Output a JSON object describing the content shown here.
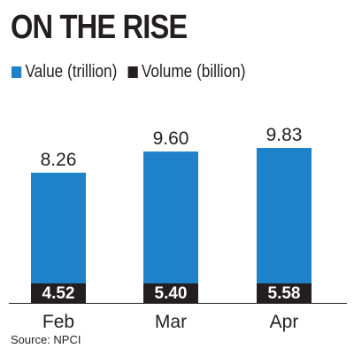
{
  "title": "ON THE RISE",
  "source": "Source: NPCI",
  "colors": {
    "value": "#1e82c8",
    "volume": "#231f20",
    "text": "#231f20",
    "label_text": "#ffffff"
  },
  "chart_data": {
    "type": "bar",
    "categories": [
      "Feb",
      "Mar",
      "Apr"
    ],
    "series": [
      {
        "name": "Value (trillion)",
        "values": [
          8.26,
          9.6,
          9.83
        ],
        "value_labels": [
          "8.26",
          "9.60",
          "9.83"
        ]
      },
      {
        "name": "Volume (billion)",
        "values": [
          4.52,
          5.4,
          5.58
        ],
        "value_labels": [
          "4.52",
          "5.40",
          "5.58"
        ]
      }
    ],
    "title": "ON THE RISE",
    "legend": "top-left",
    "grid": false
  }
}
